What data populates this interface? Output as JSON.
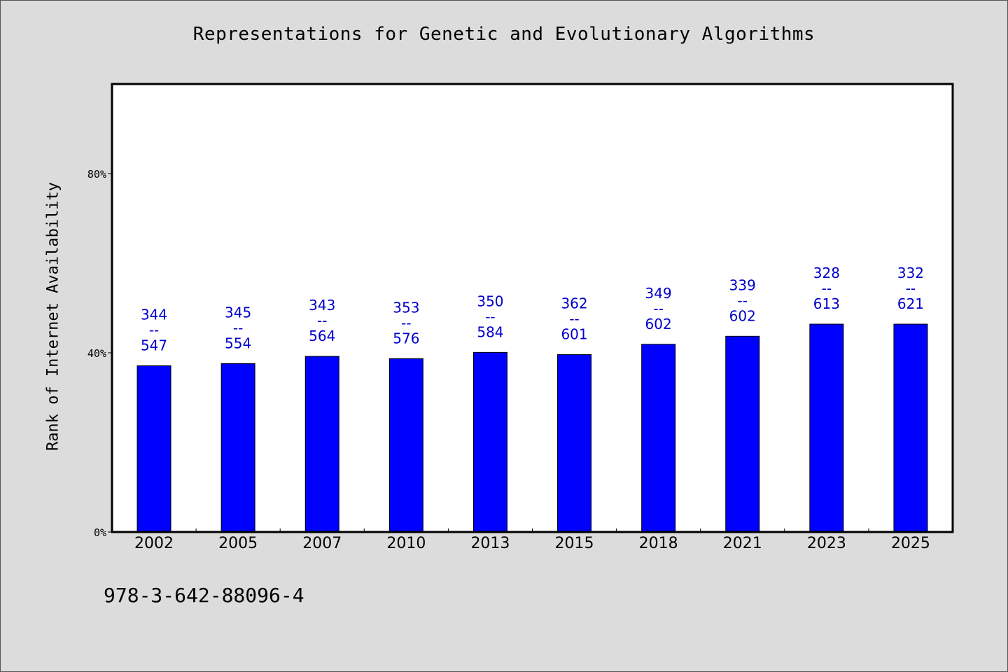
{
  "chart_data": {
    "type": "bar",
    "title": "Representations for Genetic and Evolutionary Algorithms",
    "xlabel": "",
    "ylabel": "Rank of Internet Availability",
    "categories": [
      "2002",
      "2005",
      "2007",
      "2010",
      "2013",
      "2015",
      "2018",
      "2021",
      "2023",
      "2025"
    ],
    "values": [
      37.1,
      37.6,
      39.2,
      38.7,
      40.1,
      39.6,
      41.9,
      43.7,
      46.4,
      46.4
    ],
    "value_labels": [
      {
        "top": "344",
        "sep": "--",
        "bottom": "547"
      },
      {
        "top": "345",
        "sep": "--",
        "bottom": "554"
      },
      {
        "top": "343",
        "sep": "--",
        "bottom": "564"
      },
      {
        "top": "353",
        "sep": "--",
        "bottom": "576"
      },
      {
        "top": "350",
        "sep": "--",
        "bottom": "584"
      },
      {
        "top": "362",
        "sep": "--",
        "bottom": "601"
      },
      {
        "top": "349",
        "sep": "--",
        "bottom": "602"
      },
      {
        "top": "339",
        "sep": "--",
        "bottom": "602"
      },
      {
        "top": "328",
        "sep": "--",
        "bottom": "613"
      },
      {
        "top": "332",
        "sep": "--",
        "bottom": "621"
      }
    ],
    "ylim": [
      0,
      100
    ],
    "yticks": [
      0,
      40,
      80
    ],
    "ytick_labels": [
      "0%",
      "40%",
      "80%"
    ],
    "grid": false,
    "legend": "none",
    "colors": {
      "bar": "#0000ff",
      "label": "#0000cc",
      "axis": "#000000",
      "plot_bg": "#ffffff",
      "page_bg": "#dcdcdc"
    }
  },
  "footer_text": "978-3-642-88096-4"
}
